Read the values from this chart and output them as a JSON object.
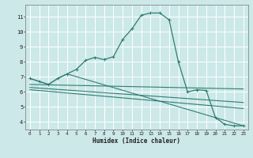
{
  "xlabel": "Humidex (Indice chaleur)",
  "xlim": [
    -0.5,
    23.5
  ],
  "ylim": [
    3.5,
    11.8
  ],
  "yticks": [
    4,
    5,
    6,
    7,
    8,
    9,
    10,
    11
  ],
  "xticks": [
    0,
    1,
    2,
    3,
    4,
    5,
    6,
    7,
    8,
    9,
    10,
    11,
    12,
    13,
    14,
    15,
    16,
    17,
    18,
    19,
    20,
    21,
    22,
    23
  ],
  "bg_color": "#cce8e8",
  "grid_color": "#ffffff",
  "line_color": "#2e7d72",
  "line1_x": [
    0,
    1,
    2,
    3,
    4,
    5,
    6,
    7,
    8,
    9,
    10,
    11,
    12,
    13,
    14,
    15,
    16,
    17,
    18,
    19,
    20,
    21,
    22,
    23
  ],
  "line1_y": [
    6.9,
    6.7,
    6.5,
    6.9,
    7.2,
    7.5,
    8.1,
    8.3,
    8.15,
    8.35,
    9.5,
    10.2,
    11.1,
    11.25,
    11.25,
    10.8,
    8.0,
    6.0,
    6.15,
    6.1,
    4.3,
    3.85,
    3.75,
    3.75
  ],
  "line2_x": [
    0,
    1,
    2,
    3,
    4,
    23
  ],
  "line2_y": [
    6.9,
    6.7,
    6.5,
    6.9,
    7.2,
    3.75
  ],
  "line3_x": [
    0,
    23
  ],
  "line3_y": [
    6.5,
    6.2
  ],
  "line4_x": [
    0,
    23
  ],
  "line4_y": [
    6.3,
    5.3
  ],
  "line5_x": [
    0,
    23
  ],
  "line5_y": [
    6.15,
    4.9
  ]
}
